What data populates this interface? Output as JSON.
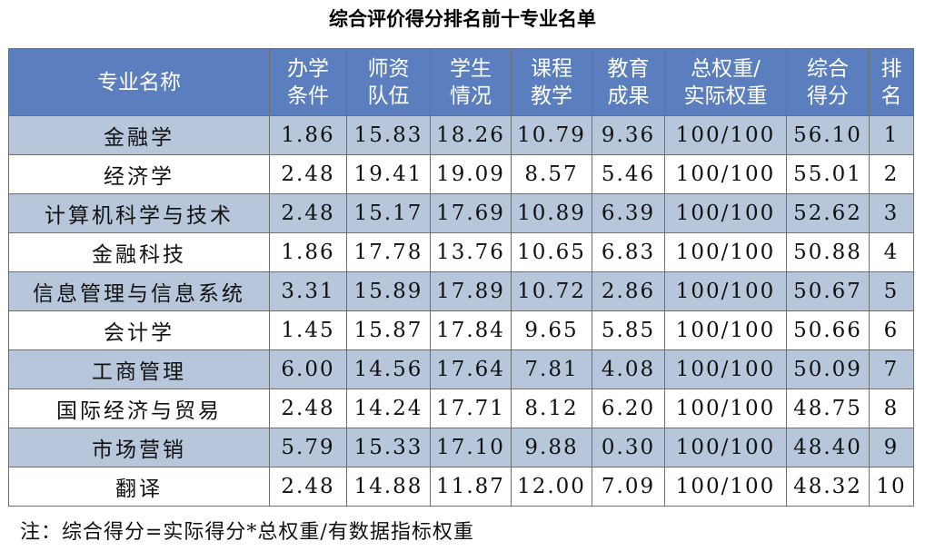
{
  "title": "综合评价得分排名前十专业名单",
  "table": {
    "headers": [
      {
        "line1": "专业名称",
        "line2": ""
      },
      {
        "line1": "办学",
        "line2": "条件"
      },
      {
        "line1": "师资",
        "line2": "队伍"
      },
      {
        "line1": "学生",
        "line2": "情况"
      },
      {
        "line1": "课程",
        "line2": "教学"
      },
      {
        "line1": "教育",
        "line2": "成果"
      },
      {
        "line1": "总权重/",
        "line2": "实际权重"
      },
      {
        "line1": "综合",
        "line2": "得分"
      },
      {
        "line1": "排",
        "line2": "名"
      }
    ],
    "rows": [
      {
        "name": "金融学",
        "cond": "1.86",
        "faculty": "15.83",
        "students": "18.26",
        "course": "10.79",
        "outcome": "9.36",
        "weight": "100/100",
        "score": "56.10",
        "rank": "1"
      },
      {
        "name": "经济学",
        "cond": "2.48",
        "faculty": "19.41",
        "students": "19.09",
        "course": "8.57",
        "outcome": "5.46",
        "weight": "100/100",
        "score": "55.01",
        "rank": "2"
      },
      {
        "name": "计算机科学与技术",
        "cond": "2.48",
        "faculty": "15.17",
        "students": "17.69",
        "course": "10.89",
        "outcome": "6.39",
        "weight": "100/100",
        "score": "52.62",
        "rank": "3"
      },
      {
        "name": "金融科技",
        "cond": "1.86",
        "faculty": "17.78",
        "students": "13.76",
        "course": "10.65",
        "outcome": "6.83",
        "weight": "100/100",
        "score": "50.88",
        "rank": "4"
      },
      {
        "name": "信息管理与信息系统",
        "cond": "3.31",
        "faculty": "15.89",
        "students": "17.89",
        "course": "10.72",
        "outcome": "2.86",
        "weight": "100/100",
        "score": "50.67",
        "rank": "5"
      },
      {
        "name": "会计学",
        "cond": "1.45",
        "faculty": "15.87",
        "students": "17.84",
        "course": "9.65",
        "outcome": "5.85",
        "weight": "100/100",
        "score": "50.66",
        "rank": "6"
      },
      {
        "name": "工商管理",
        "cond": "6.00",
        "faculty": "14.56",
        "students": "17.64",
        "course": "7.81",
        "outcome": "4.08",
        "weight": "100/100",
        "score": "50.09",
        "rank": "7"
      },
      {
        "name": "国际经济与贸易",
        "cond": "2.48",
        "faculty": "14.24",
        "students": "17.71",
        "course": "8.12",
        "outcome": "6.20",
        "weight": "100/100",
        "score": "48.75",
        "rank": "8"
      },
      {
        "name": "市场营销",
        "cond": "5.79",
        "faculty": "15.33",
        "students": "17.10",
        "course": "9.88",
        "outcome": "0.30",
        "weight": "100/100",
        "score": "48.40",
        "rank": "9"
      },
      {
        "name": "翻译",
        "cond": "2.48",
        "faculty": "14.88",
        "students": "11.87",
        "course": "12.00",
        "outcome": "7.09",
        "weight": "100/100",
        "score": "48.32",
        "rank": "10"
      }
    ]
  },
  "note": "注：综合得分=实际得分*总权重/有数据指标权重",
  "colors": {
    "header_bg": "#5b7fbe",
    "header_text": "#ffffff",
    "stripe_bg": "#b8c6dc",
    "border": "#6f6f6f"
  }
}
